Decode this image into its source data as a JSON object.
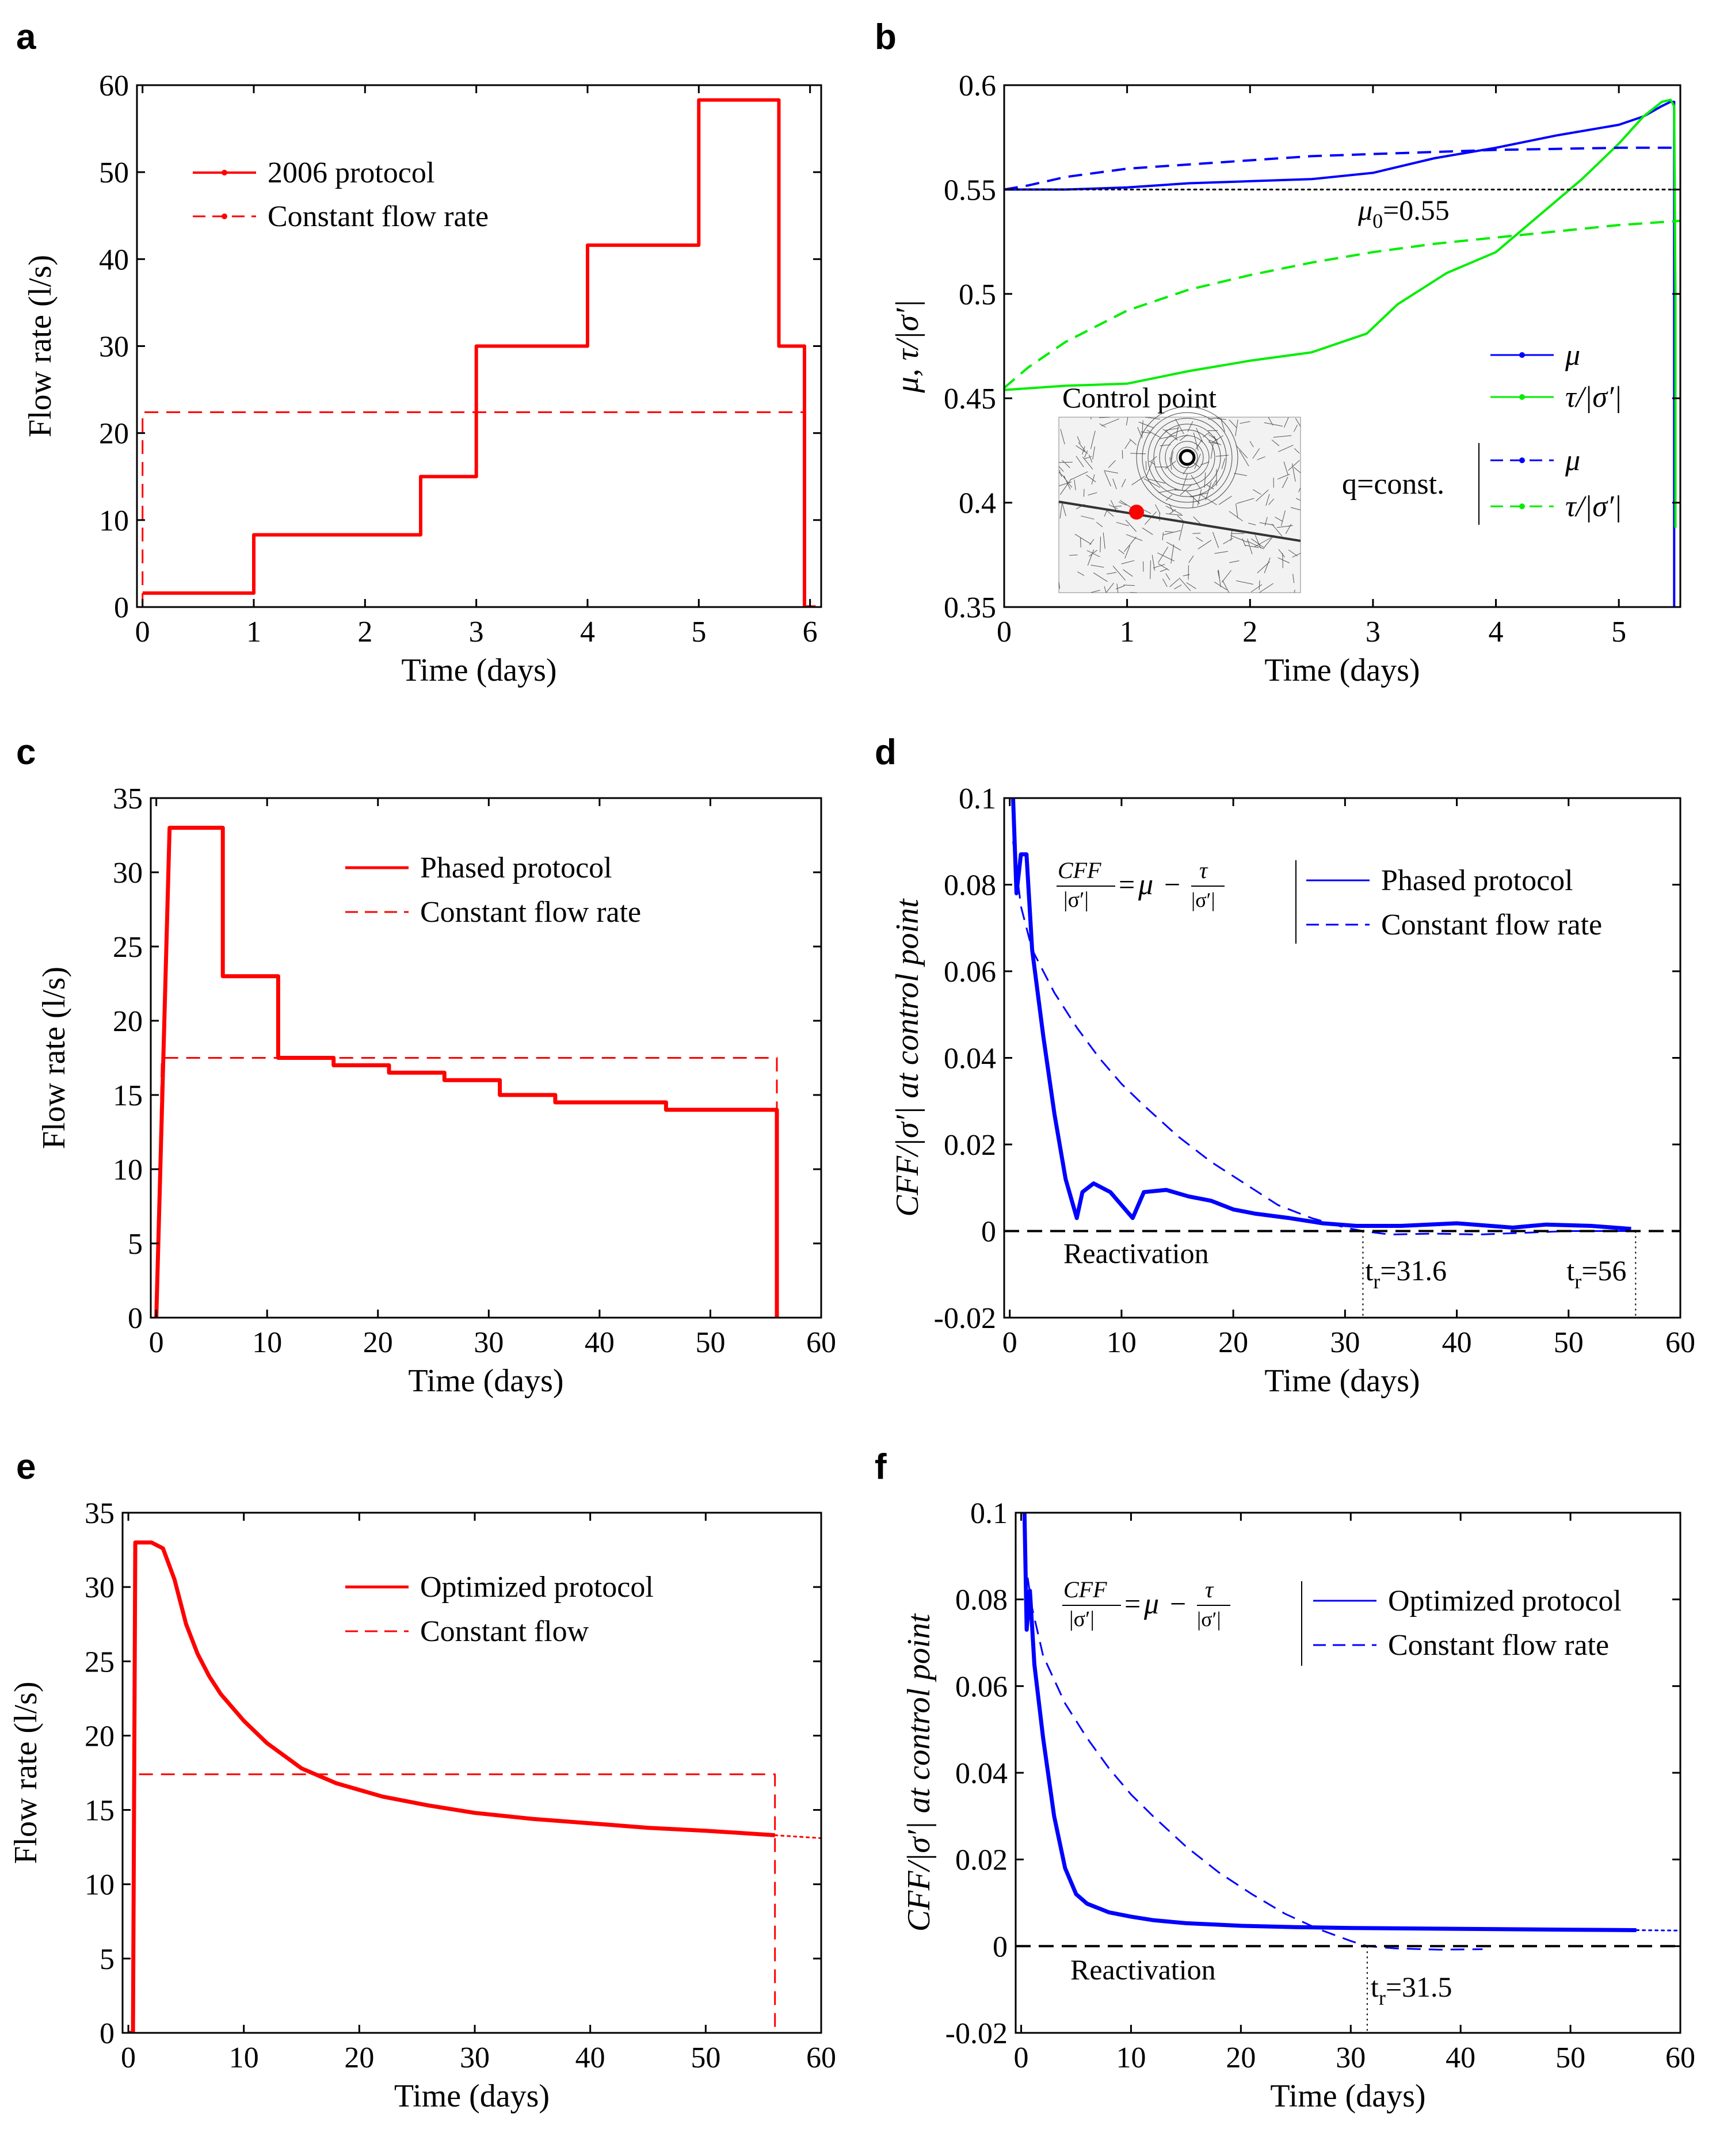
{
  "chart_data": [
    {
      "panel": "a",
      "type": "line",
      "xlabel": "Time (days)",
      "ylabel": "Flow rate (l/s)",
      "xlim": [
        -0.05,
        6.1
      ],
      "ylim": [
        0,
        60
      ],
      "xticks": [
        "0",
        "1",
        "2",
        "3",
        "4",
        "5",
        "6"
      ],
      "yticks": [
        "0",
        "10",
        "20",
        "30",
        "40",
        "50",
        "60"
      ],
      "legend": [
        "2006 protocol",
        "Constant flow rate"
      ],
      "series": [
        {
          "name": "2006 protocol",
          "color": "#ff0000",
          "style": "solid",
          "width": 6,
          "x": [
            0,
            1,
            1,
            2.5,
            2.5,
            3,
            3,
            4,
            4,
            5,
            5,
            5.72,
            5.72,
            5.95,
            5.95,
            6.05
          ],
          "y": [
            1.6,
            1.6,
            8.3,
            8.3,
            15,
            15,
            30,
            30,
            41.6,
            41.6,
            58.3,
            58.3,
            30,
            30,
            0,
            0
          ]
        },
        {
          "name": "Constant flow rate",
          "color": "#ff0000",
          "style": "dashed",
          "width": 3,
          "x": [
            0,
            0,
            5.95,
            5.95
          ],
          "y": [
            0,
            22.4,
            22.4,
            0
          ]
        }
      ]
    },
    {
      "panel": "b",
      "type": "line",
      "xlabel": "Time (days)",
      "ylabel": "μ, τ/|σ′|",
      "xlim": [
        0,
        5.5
      ],
      "ylim": [
        0.35,
        0.6
      ],
      "xticks": [
        "0",
        "1",
        "2",
        "3",
        "4",
        "5"
      ],
      "yticks": [
        "0.35",
        "0.4",
        "0.45",
        "0.5",
        "0.55",
        "0.6"
      ],
      "legend": [
        "μ",
        "τ/|σ′|",
        "μ",
        "τ/|σ′|"
      ],
      "legend_group_label": "q=const.",
      "mu0_label": "μ",
      "mu0_sub": "0",
      "mu0_value": "=0.55",
      "inset_label": "Control point",
      "series": [
        {
          "name": "μ",
          "color": "#0000ff",
          "style": "solid",
          "width": 4,
          "x": [
            0,
            0.5,
            1,
            1.5,
            2,
            2.5,
            3,
            3.5,
            4,
            4.5,
            5,
            5.2,
            5.35,
            5.42,
            5.45,
            5.45,
            5.46
          ],
          "y": [
            0.55,
            0.55,
            0.551,
            0.553,
            0.554,
            0.555,
            0.558,
            0.565,
            0.57,
            0.576,
            0.581,
            0.585,
            0.59,
            0.592,
            0.592,
            0.35,
            0.35
          ]
        },
        {
          "name": "τ/|σ′|",
          "color": "#00ee00",
          "style": "solid",
          "width": 4,
          "x": [
            0,
            0.5,
            1,
            1.5,
            2,
            2.5,
            2.95,
            3.2,
            3.6,
            4,
            4.3,
            4.7,
            5,
            5.2,
            5.35,
            5.42,
            5.45,
            5.46,
            5.46
          ],
          "y": [
            0.454,
            0.456,
            0.457,
            0.463,
            0.468,
            0.472,
            0.481,
            0.495,
            0.51,
            0.52,
            0.535,
            0.555,
            0.572,
            0.585,
            0.592,
            0.593,
            0.59,
            0.5,
            0.388
          ]
        },
        {
          "name": "μ (q=const.)",
          "color": "#0000ff",
          "style": "dashed",
          "width": 4,
          "x": [
            0,
            0.2,
            0.5,
            1,
            1.5,
            2,
            2.5,
            3,
            3.5,
            4,
            4.5,
            5,
            5.5
          ],
          "y": [
            0.55,
            0.552,
            0.556,
            0.56,
            0.562,
            0.564,
            0.566,
            0.567,
            0.568,
            0.569,
            0.5695,
            0.57,
            0.57
          ]
        },
        {
          "name": "τ/|σ′| (q=const.)",
          "color": "#00ee00",
          "style": "dashed",
          "width": 4,
          "x": [
            0,
            0.2,
            0.5,
            1,
            1.5,
            2,
            2.5,
            3,
            3.5,
            4,
            4.5,
            5,
            5.5
          ],
          "y": [
            0.455,
            0.465,
            0.477,
            0.492,
            0.502,
            0.509,
            0.515,
            0.52,
            0.524,
            0.527,
            0.53,
            0.533,
            0.535
          ]
        },
        {
          "name": "μ0",
          "color": "#000000",
          "style": "dotted",
          "width": 3,
          "x": [
            0,
            5.5
          ],
          "y": [
            0.55,
            0.55
          ]
        }
      ]
    },
    {
      "panel": "c",
      "type": "line",
      "xlabel": "Time (days)",
      "ylabel": "Flow rate (l/s)",
      "xlim": [
        -0.5,
        60
      ],
      "ylim": [
        0,
        35
      ],
      "xticks": [
        "0",
        "10",
        "20",
        "30",
        "40",
        "50",
        "60"
      ],
      "yticks": [
        "0",
        "5",
        "10",
        "15",
        "20",
        "25",
        "30",
        "35"
      ],
      "legend": [
        "Phased protocol",
        "Constant flow rate"
      ],
      "series": [
        {
          "name": "Phased protocol",
          "color": "#ff0000",
          "style": "solid",
          "width": 7,
          "x": [
            0,
            1.2,
            6,
            6,
            11,
            11,
            16,
            16,
            21,
            21,
            26,
            26,
            31,
            31,
            36,
            36,
            46,
            46,
            56,
            56
          ],
          "y": [
            0,
            33,
            33,
            23,
            23,
            17.5,
            17.5,
            17,
            17,
            16.5,
            16.5,
            16,
            16,
            15,
            15,
            14.5,
            14.5,
            14,
            14,
            0
          ]
        },
        {
          "name": "Constant flow rate",
          "color": "#ff0000",
          "style": "dashed",
          "width": 3,
          "x": [
            0,
            0.5,
            56,
            56
          ],
          "y": [
            0,
            17.5,
            17.5,
            0
          ]
        }
      ]
    },
    {
      "panel": "d",
      "type": "line",
      "xlabel": "Time (days)",
      "ylabel": "CFF/|σ′| at control point",
      "xlim": [
        -0.5,
        60
      ],
      "ylim": [
        -0.02,
        0.1
      ],
      "xticks": [
        "0",
        "10",
        "20",
        "30",
        "40",
        "50",
        "60"
      ],
      "yticks": [
        "-0.02",
        "0",
        "0.02",
        "0.04",
        "0.06",
        "0.08",
        "0.1"
      ],
      "legend": [
        "Phased protocol",
        "Constant flow rate"
      ],
      "equation": "CFF/|σ′| = μ − τ/|σ′|",
      "annotations": [
        "Reactivation",
        "t",
        "r",
        "=31.6",
        "t",
        "r",
        "=56"
      ],
      "series": [
        {
          "name": "Phased protocol",
          "color": "#0000ff",
          "style": "solid",
          "width": 7,
          "x": [
            0.3,
            0.6,
            1,
            1.5,
            2,
            3,
            4,
            5,
            6,
            6.5,
            7.5,
            9,
            11,
            12,
            14,
            16,
            18,
            20,
            22,
            25,
            28,
            31,
            35,
            40,
            45,
            48,
            52,
            55.6
          ],
          "y": [
            0.1,
            0.078,
            0.087,
            0.087,
            0.065,
            0.045,
            0.027,
            0.012,
            0.003,
            0.009,
            0.011,
            0.009,
            0.003,
            0.009,
            0.0095,
            0.008,
            0.007,
            0.005,
            0.004,
            0.003,
            0.0018,
            0.0012,
            0.0012,
            0.0018,
            0.0008,
            0.0015,
            0.0012,
            0.0005
          ]
        },
        {
          "name": "Constant flow rate",
          "color": "#0000ff",
          "style": "dashed",
          "width": 3,
          "x": [
            0.3,
            1,
            2,
            4,
            6,
            8,
            10,
            12,
            15,
            18,
            21,
            24,
            27,
            30,
            31.6,
            34,
            38,
            42,
            46,
            50,
            55.6
          ],
          "y": [
            0.09,
            0.075,
            0.065,
            0.055,
            0.047,
            0.04,
            0.034,
            0.029,
            0.022,
            0.016,
            0.011,
            0.006,
            0.003,
            0.0008,
            0,
            -0.0008,
            -0.0006,
            -0.0008,
            -0.0004,
            0,
            0
          ]
        },
        {
          "name": "Reactivation",
          "color": "#000000",
          "style": "dashed",
          "width": 4,
          "x": [
            -0.5,
            60
          ],
          "y": [
            0,
            0
          ]
        }
      ]
    },
    {
      "panel": "e",
      "type": "line",
      "xlabel": "Time (days)",
      "ylabel": "Flow rate (l/s)",
      "xlim": [
        -0.5,
        60
      ],
      "ylim": [
        0,
        35
      ],
      "xticks": [
        "0",
        "10",
        "20",
        "30",
        "40",
        "50",
        "60"
      ],
      "yticks": [
        "0",
        "5",
        "10",
        "15",
        "20",
        "25",
        "30",
        "35"
      ],
      "legend": [
        "Optimized protocol",
        "Constant flow"
      ],
      "series": [
        {
          "name": "Optimized protocol",
          "color": "#ff0000",
          "style": "solid",
          "width": 7,
          "x": [
            0,
            0.4,
            0.6,
            2,
            3,
            4,
            5,
            6,
            7,
            8,
            10,
            12,
            15,
            18,
            22,
            26,
            30,
            35,
            40,
            45,
            50,
            56
          ],
          "y": [
            0,
            0,
            33,
            33,
            32.6,
            30.5,
            27.5,
            25.5,
            24,
            22.8,
            21,
            19.5,
            17.8,
            16.8,
            15.9,
            15.3,
            14.8,
            14.4,
            14.1,
            13.8,
            13.6,
            13.3
          ]
        },
        {
          "name": "Optimized protocol (extension)",
          "color": "#ff0000",
          "style": "dotted",
          "width": 3,
          "x": [
            56,
            60
          ],
          "y": [
            13.3,
            13.1
          ]
        },
        {
          "name": "Constant flow",
          "color": "#ff0000",
          "style": "dashed",
          "width": 3,
          "x": [
            0.4,
            0.6,
            56,
            56
          ],
          "y": [
            0,
            17.4,
            17.4,
            0
          ]
        }
      ]
    },
    {
      "panel": "f",
      "type": "line",
      "xlabel": "Time (days)",
      "ylabel": "CFF/|σ′| at control point",
      "xlim": [
        -0.5,
        60
      ],
      "ylim": [
        -0.02,
        0.1
      ],
      "xticks": [
        "0",
        "10",
        "20",
        "30",
        "40",
        "50",
        "60"
      ],
      "yticks": [
        "-0.02",
        "0",
        "0.02",
        "0.04",
        "0.06",
        "0.08",
        "0.1"
      ],
      "legend": [
        "Optimized protocol",
        "Constant flow rate"
      ],
      "equation": "CFF/|σ′| = μ − τ/|σ′|",
      "annotations": [
        "Reactivation",
        "t",
        "r",
        "=31.5"
      ],
      "series": [
        {
          "name": "Optimized protocol",
          "color": "#0000ff",
          "style": "solid",
          "width": 7,
          "x": [
            0.3,
            0.5,
            0.8,
            1.2,
            2,
            3,
            4,
            5,
            6,
            8,
            10,
            12,
            15,
            20,
            25,
            30,
            40,
            50,
            56
          ],
          "y": [
            0.1,
            0.073,
            0.082,
            0.065,
            0.048,
            0.03,
            0.018,
            0.012,
            0.0098,
            0.0078,
            0.0068,
            0.006,
            0.0053,
            0.0047,
            0.0044,
            0.0042,
            0.004,
            0.0038,
            0.0037
          ]
        },
        {
          "name": "Optimized protocol (extension)",
          "color": "#0000ff",
          "style": "dotted",
          "width": 3,
          "x": [
            56,
            60
          ],
          "y": [
            0.0037,
            0.0036
          ]
        },
        {
          "name": "Constant flow rate",
          "color": "#0000ff",
          "style": "dashed",
          "width": 3,
          "x": [
            0.3,
            1,
            2,
            4,
            6,
            8,
            10,
            12,
            15,
            18,
            21,
            24,
            27,
            30,
            31.5,
            34,
            38,
            42
          ],
          "y": [
            0.09,
            0.078,
            0.067,
            0.056,
            0.048,
            0.041,
            0.035,
            0.03,
            0.023,
            0.017,
            0.012,
            0.0075,
            0.004,
            0.0012,
            0,
            -0.0005,
            -0.0008,
            -0.0007
          ]
        },
        {
          "name": "Reactivation",
          "color": "#000000",
          "style": "dashed",
          "width": 4,
          "x": [
            -0.5,
            60
          ],
          "y": [
            0,
            0
          ]
        }
      ]
    }
  ]
}
